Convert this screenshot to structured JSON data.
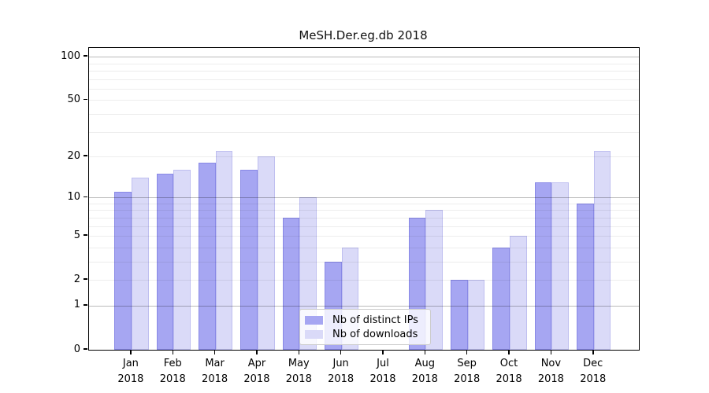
{
  "title": "MeSH.Der.eg.db 2018",
  "legend": {
    "items": [
      {
        "label": "Nb of distinct IPs",
        "color": "#a6a6f2"
      },
      {
        "label": "Nb of downloads",
        "color": "#dadaf8"
      }
    ]
  },
  "chart_data": {
    "type": "bar",
    "title": "MeSH.Der.eg.db 2018",
    "categories": [
      "Jan 2018",
      "Feb 2018",
      "Mar 2018",
      "Apr 2018",
      "May 2018",
      "Jun 2018",
      "Jul 2018",
      "Aug 2018",
      "Sep 2018",
      "Oct 2018",
      "Nov 2018",
      "Dec 2018"
    ],
    "x_tick_months": [
      "Jan",
      "Feb",
      "Mar",
      "Apr",
      "May",
      "Jun",
      "Jul",
      "Aug",
      "Sep",
      "Oct",
      "Nov",
      "Dec"
    ],
    "x_tick_year": "2018",
    "series": [
      {
        "name": "Nb of distinct IPs",
        "color": "#a6a6f2",
        "values": [
          11,
          15,
          18,
          16,
          7,
          3,
          0,
          7,
          2,
          4,
          13,
          9
        ]
      },
      {
        "name": "Nb of downloads",
        "color": "#dadaf8",
        "values": [
          14,
          16,
          22,
          20,
          10,
          4,
          0,
          8,
          2,
          5,
          13,
          22
        ]
      }
    ],
    "xlabel": "",
    "ylabel": "",
    "y_scale": "log1p",
    "y_tick_values": [
      0,
      1,
      2,
      5,
      10,
      20,
      50,
      100
    ],
    "y_major_gridlines": [
      1,
      10,
      100
    ],
    "y_minor_gridlines": [
      2,
      3,
      4,
      5,
      6,
      7,
      8,
      9,
      20,
      30,
      40,
      50,
      60,
      70,
      80,
      90
    ],
    "ylim": [
      0,
      116
    ],
    "grid": "on, drawn over bars",
    "legend_position": "bottom-center inside plot"
  }
}
